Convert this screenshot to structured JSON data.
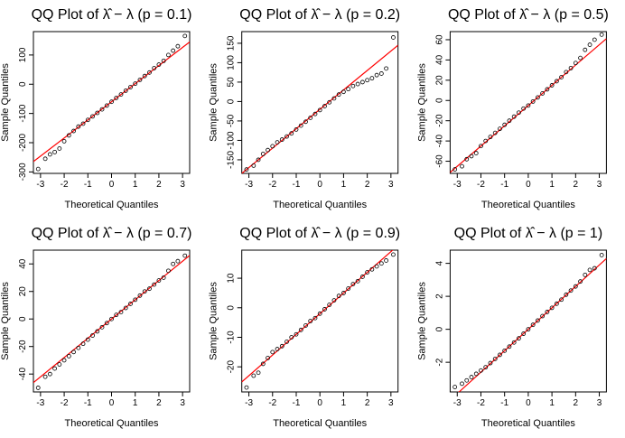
{
  "chart_data": [
    {
      "type": "scatter",
      "title": "QQ Plot of λ̂ − λ (p = 0.1)",
      "x_label": "Theoretical Quantiles",
      "y_label": "Sample Quantiles",
      "x": [
        -3.1,
        -2.8,
        -2.6,
        -2.4,
        -2.2,
        -2.0,
        -1.8,
        -1.6,
        -1.4,
        -1.2,
        -1.0,
        -0.8,
        -0.6,
        -0.4,
        -0.2,
        0,
        0.2,
        0.4,
        0.6,
        0.8,
        1.0,
        1.2,
        1.4,
        1.6,
        1.8,
        2.0,
        2.2,
        2.4,
        2.6,
        2.8,
        3.1
      ],
      "y": [
        -290,
        -255,
        -240,
        -232,
        -220,
        -195,
        -175,
        -160,
        -145,
        -135,
        -122,
        -110,
        -98,
        -86,
        -73,
        -60,
        -47,
        -35,
        -22,
        -10,
        2,
        15,
        28,
        40,
        55,
        67,
        80,
        100,
        115,
        130,
        165
      ],
      "xlim": [
        -3.3,
        3.3
      ],
      "ylim": [
        -305,
        180
      ],
      "xticks": [
        -3,
        -2,
        -1,
        0,
        1,
        2,
        3
      ],
      "yticks": [
        -300,
        -200,
        -100,
        0,
        100
      ],
      "point_color": "#000000",
      "reference_line": {
        "intercept": -60,
        "slope": 62,
        "color": "#ff0000"
      }
    },
    {
      "type": "scatter",
      "title": "QQ Plot of λ̂ − λ (p = 0.2)",
      "x_label": "Theoretical Quantiles",
      "y_label": "Sample Quantiles",
      "x": [
        -3.1,
        -2.8,
        -2.6,
        -2.4,
        -2.2,
        -2.0,
        -1.8,
        -1.6,
        -1.4,
        -1.2,
        -1.0,
        -0.8,
        -0.6,
        -0.4,
        -0.2,
        0,
        0.2,
        0.4,
        0.6,
        0.8,
        1.0,
        1.2,
        1.4,
        1.6,
        1.8,
        2.0,
        2.2,
        2.4,
        2.6,
        2.8,
        3.1
      ],
      "y": [
        -175,
        -165,
        -150,
        -135,
        -125,
        -115,
        -105,
        -98,
        -90,
        -82,
        -72,
        -62,
        -52,
        -42,
        -32,
        -22,
        -12,
        -2,
        8,
        18,
        25,
        32,
        40,
        45,
        50,
        55,
        60,
        68,
        72,
        85,
        165
      ],
      "xlim": [
        -3.3,
        3.3
      ],
      "ylim": [
        -185,
        180
      ],
      "xticks": [
        -3,
        -2,
        -1,
        0,
        1,
        2,
        3
      ],
      "yticks": [
        -150,
        -100,
        -50,
        0,
        50,
        100,
        150
      ],
      "point_color": "#000000",
      "reference_line": {
        "intercept": -20,
        "slope": 50,
        "color": "#ff0000"
      }
    },
    {
      "type": "scatter",
      "title": "QQ Plot of λ̂ − λ (p = 0.5)",
      "x_label": "Theoretical Quantiles",
      "y_label": "Sample Quantiles",
      "x": [
        -3.1,
        -2.8,
        -2.6,
        -2.4,
        -2.2,
        -2.0,
        -1.8,
        -1.6,
        -1.4,
        -1.2,
        -1.0,
        -0.8,
        -0.6,
        -0.4,
        -0.2,
        0,
        0.2,
        0.4,
        0.6,
        0.8,
        1.0,
        1.2,
        1.4,
        1.6,
        1.8,
        2.0,
        2.2,
        2.4,
        2.6,
        2.8,
        3.1
      ],
      "y": [
        -68,
        -65,
        -58,
        -55,
        -52,
        -45,
        -40,
        -36,
        -32,
        -28,
        -24,
        -20,
        -16,
        -12,
        -8,
        -5,
        -1,
        3,
        7,
        11,
        15,
        19,
        23,
        28,
        32,
        37,
        42,
        50,
        55,
        60,
        65
      ],
      "xlim": [
        -3.3,
        3.3
      ],
      "ylim": [
        -72,
        68
      ],
      "xticks": [
        -3,
        -2,
        -1,
        0,
        1,
        2,
        3
      ],
      "yticks": [
        -60,
        -40,
        -20,
        0,
        20,
        40,
        60
      ],
      "point_color": "#000000",
      "reference_line": {
        "intercept": -5,
        "slope": 20,
        "color": "#ff0000"
      }
    },
    {
      "type": "scatter",
      "title": "QQ Plot of λ̂ − λ (p = 0.7)",
      "x_label": "Theoretical Quantiles",
      "y_label": "Sample Quantiles",
      "x": [
        -3.1,
        -2.8,
        -2.6,
        -2.4,
        -2.2,
        -2.0,
        -1.8,
        -1.6,
        -1.4,
        -1.2,
        -1.0,
        -0.8,
        -0.6,
        -0.4,
        -0.2,
        0,
        0.2,
        0.4,
        0.6,
        0.8,
        1.0,
        1.2,
        1.4,
        1.6,
        1.8,
        2.0,
        2.2,
        2.4,
        2.6,
        2.8,
        3.1
      ],
      "y": [
        -50,
        -42,
        -40,
        -36,
        -33,
        -30,
        -27,
        -24,
        -21,
        -18,
        -15,
        -12,
        -9,
        -6,
        -3,
        0,
        3,
        5,
        8,
        11,
        14,
        17,
        20,
        22,
        25,
        28,
        30,
        35,
        40,
        42,
        46
      ],
      "xlim": [
        -3.3,
        3.3
      ],
      "ylim": [
        -53,
        50
      ],
      "xticks": [
        -3,
        -2,
        -1,
        0,
        1,
        2,
        3
      ],
      "yticks": [
        -40,
        -20,
        0,
        20,
        40
      ],
      "point_color": "#000000",
      "reference_line": {
        "intercept": 0,
        "slope": 14,
        "color": "#ff0000"
      }
    },
    {
      "type": "scatter",
      "title": "QQ Plot of λ̂ − λ (p = 0.9)",
      "x_label": "Theoretical Quantiles",
      "y_label": "Sample Quantiles",
      "x": [
        -3.1,
        -2.8,
        -2.6,
        -2.4,
        -2.2,
        -2.0,
        -1.8,
        -1.6,
        -1.4,
        -1.2,
        -1.0,
        -0.8,
        -0.6,
        -0.4,
        -0.2,
        0,
        0.2,
        0.4,
        0.6,
        0.8,
        1.0,
        1.2,
        1.4,
        1.6,
        1.8,
        2.0,
        2.2,
        2.4,
        2.6,
        2.8,
        3.1
      ],
      "y": [
        -27,
        -23,
        -22,
        -19,
        -17,
        -15,
        -14,
        -13,
        -11.5,
        -10,
        -9,
        -7.5,
        -6,
        -4.5,
        -3.5,
        -2,
        -0.5,
        1,
        2.5,
        4,
        5,
        6.5,
        8,
        9,
        10.5,
        12,
        13,
        14,
        15,
        16,
        18
      ],
      "xlim": [
        -3.3,
        3.3
      ],
      "ylim": [
        -28.5,
        19.5
      ],
      "xticks": [
        -3,
        -2,
        -1,
        0,
        1,
        2,
        3
      ],
      "yticks": [
        -20,
        -10,
        0,
        10
      ],
      "point_color": "#000000",
      "reference_line": {
        "intercept": -2,
        "slope": 7,
        "color": "#ff0000"
      }
    },
    {
      "type": "scatter",
      "title": "QQ Plot of λ̂ − λ (p = 1)",
      "x_label": "Theoretical Quantiles",
      "y_label": "Sample Quantiles",
      "x": [
        -3.1,
        -2.8,
        -2.6,
        -2.4,
        -2.2,
        -2.0,
        -1.8,
        -1.6,
        -1.4,
        -1.2,
        -1.0,
        -0.8,
        -0.6,
        -0.4,
        -0.2,
        0,
        0.2,
        0.4,
        0.6,
        0.8,
        1.0,
        1.2,
        1.4,
        1.6,
        1.8,
        2.0,
        2.2,
        2.4,
        2.6,
        2.8,
        3.1
      ],
      "y": [
        -3.5,
        -3.3,
        -3.1,
        -2.9,
        -2.7,
        -2.5,
        -2.3,
        -2.05,
        -1.8,
        -1.55,
        -1.3,
        -1.05,
        -0.8,
        -0.55,
        -0.27,
        0,
        0.27,
        0.53,
        0.8,
        1.05,
        1.3,
        1.55,
        1.8,
        2.1,
        2.35,
        2.6,
        2.9,
        3.3,
        3.6,
        3.7,
        4.5
      ],
      "xlim": [
        -3.3,
        3.3
      ],
      "ylim": [
        -3.8,
        4.8
      ],
      "xticks": [
        -3,
        -2,
        -1,
        0,
        1,
        2,
        3
      ],
      "yticks": [
        -2,
        0,
        2,
        4
      ],
      "point_color": "#000000",
      "reference_line": {
        "intercept": 0,
        "slope": 1.3,
        "color": "#ff0000"
      }
    }
  ]
}
